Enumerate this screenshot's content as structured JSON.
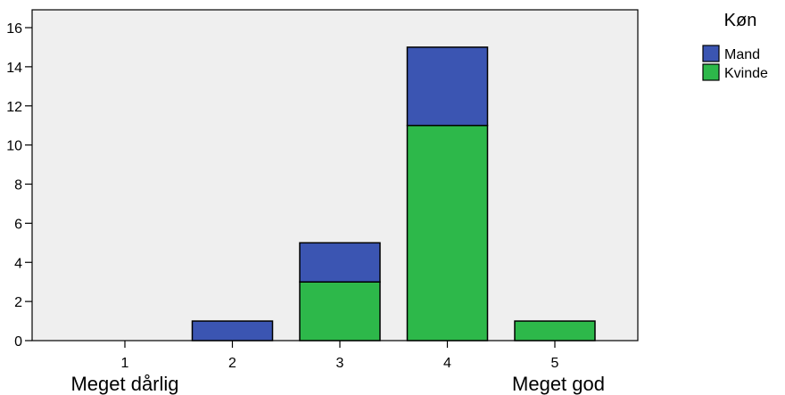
{
  "chart_data": {
    "type": "bar",
    "stacked": true,
    "categories": [
      "1",
      "2",
      "3",
      "4",
      "5"
    ],
    "category_end_labels": {
      "first": "Meget dårlig",
      "last": "Meget god"
    },
    "series": [
      {
        "name": "Kvinde",
        "color": "#2DB84A",
        "values": [
          0,
          0,
          3,
          11,
          1
        ]
      },
      {
        "name": "Mand",
        "color": "#3B55B2",
        "values": [
          0,
          1,
          2,
          4,
          0
        ]
      }
    ],
    "y_ticks": [
      "0",
      "2",
      "4",
      "6",
      "8",
      "10",
      "12",
      "14",
      "16"
    ],
    "ylim": [
      0,
      16
    ],
    "grid": false,
    "plot_background": "#EFEFEF",
    "legend": {
      "title": "Køn",
      "position": "top-right",
      "items": [
        {
          "name": "Mand",
          "color": "#3B55B2"
        },
        {
          "name": "Kvinde",
          "color": "#2DB84A"
        }
      ]
    }
  }
}
